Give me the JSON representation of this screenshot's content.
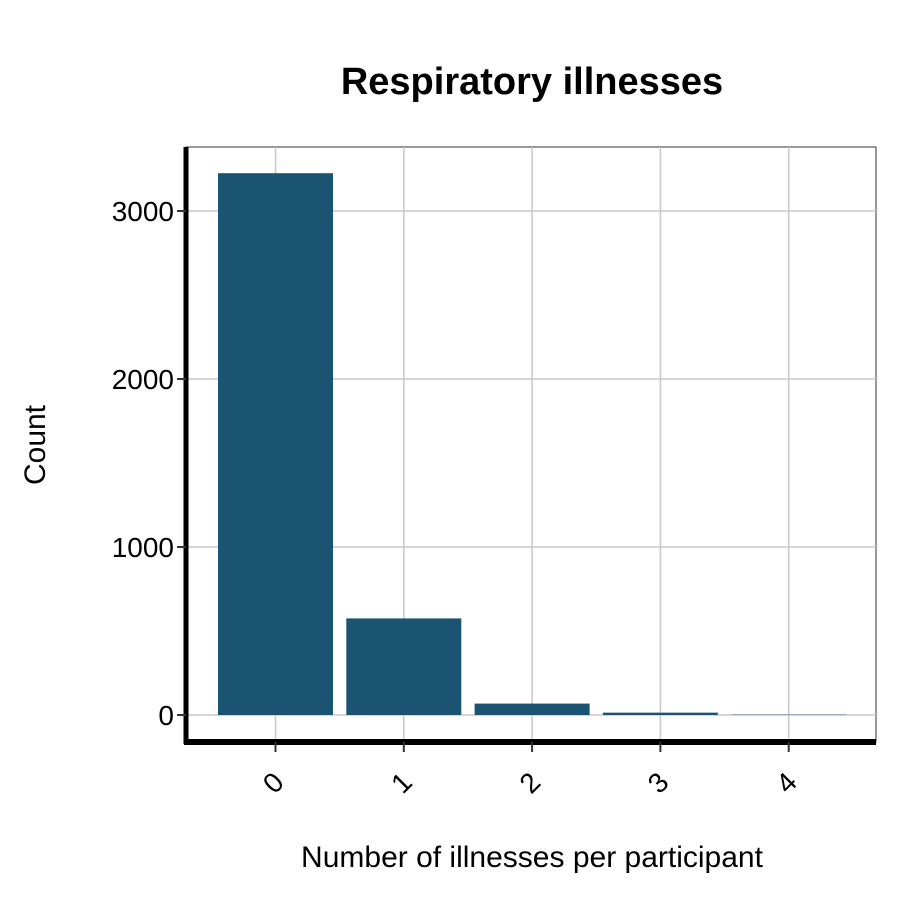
{
  "chart_data": {
    "type": "bar",
    "title": "Respiratory illnesses",
    "xlabel": "Number of illnesses per participant",
    "ylabel": "Count",
    "categories": [
      "0",
      "1",
      "2",
      "3",
      "4"
    ],
    "values": [
      3225,
      575,
      68,
      14,
      2
    ],
    "ylim": [
      -165,
      3375
    ],
    "yticks": [
      0,
      1000,
      2000,
      3000
    ],
    "ytick_labels": [
      "0",
      "1000",
      "2000",
      "3000"
    ],
    "grid": true,
    "legend": "none",
    "bar_color": "#1b5373",
    "grid_color": "#c8c8c8",
    "axis_color": "#000000"
  }
}
